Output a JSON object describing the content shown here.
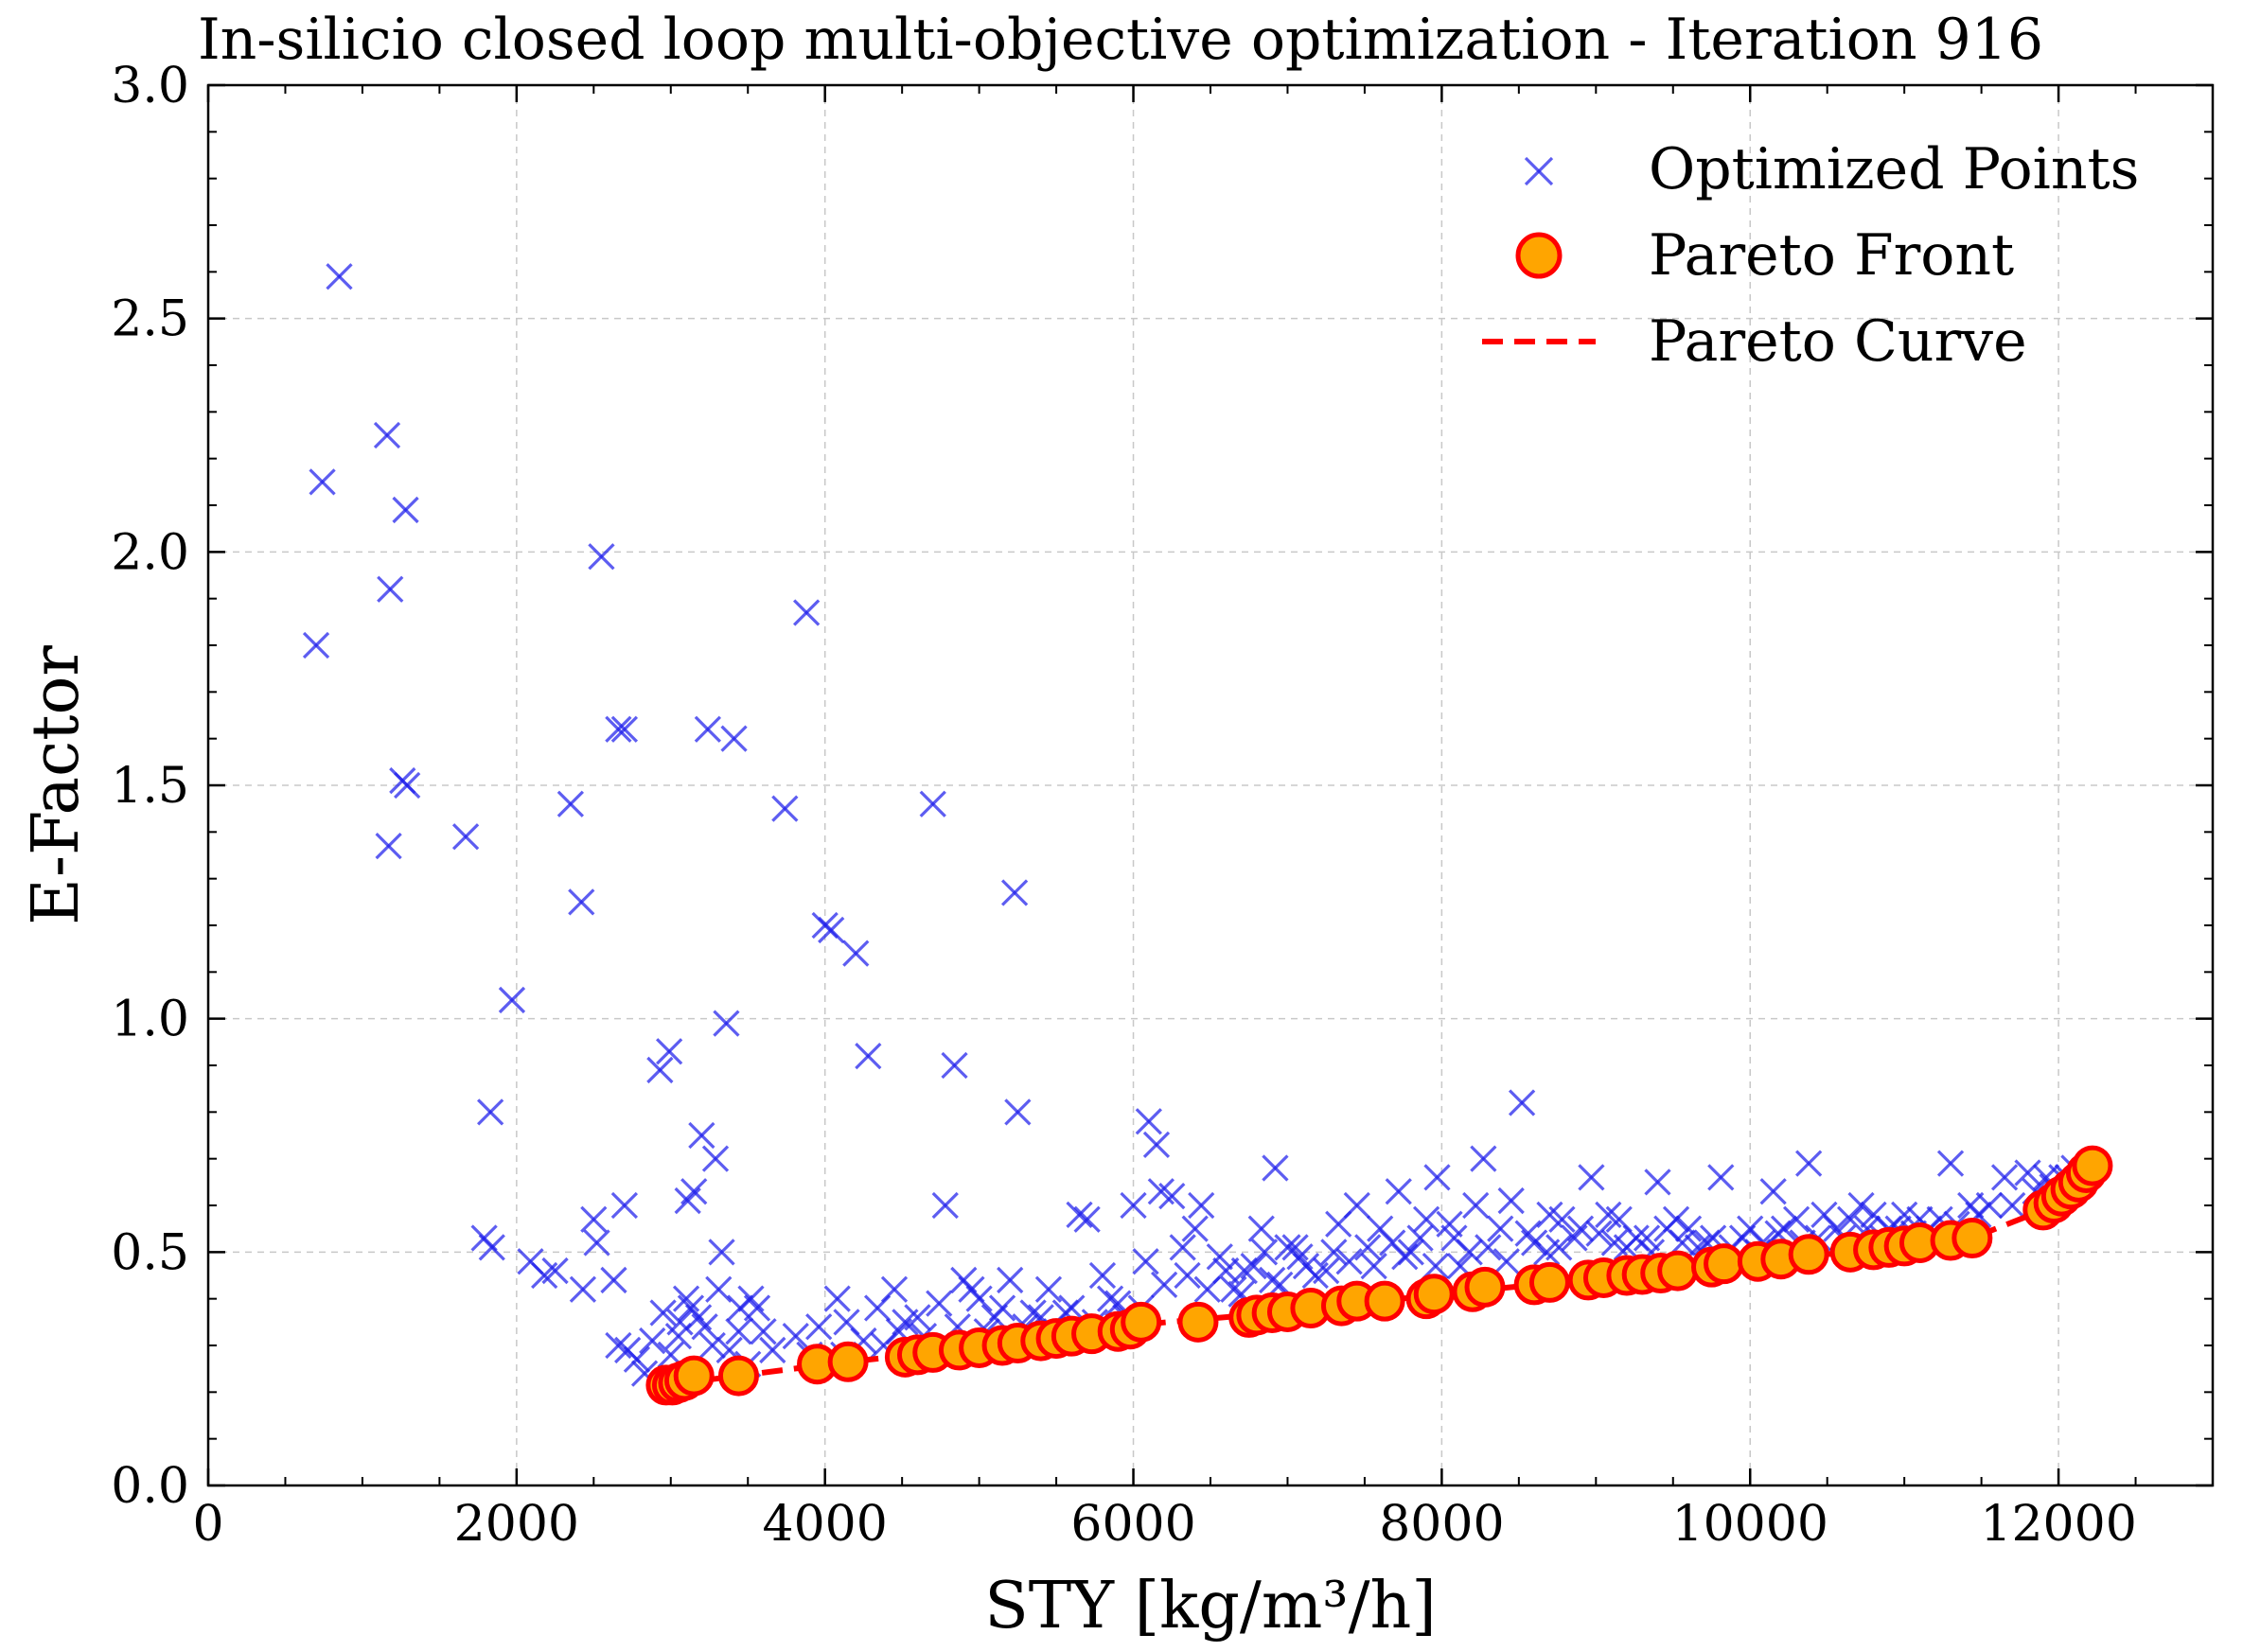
{
  "chart_data": {
    "type": "scatter",
    "title": "In-silicio closed loop multi-objective optimization - Iteration 916",
    "xlabel": "STY [kg/m³/h]",
    "ylabel": "E-Factor",
    "xlim": [
      0,
      13000
    ],
    "ylim": [
      0.0,
      3.0
    ],
    "x_ticks": [
      0,
      2000,
      4000,
      6000,
      8000,
      10000,
      12000
    ],
    "x_tick_labels": [
      "0",
      "2000",
      "4000",
      "6000",
      "8000",
      "10000",
      "12000"
    ],
    "y_ticks": [
      0.0,
      0.5,
      1.0,
      1.5,
      2.0,
      2.5,
      3.0
    ],
    "y_tick_labels": [
      "0.0",
      "0.5",
      "1.0",
      "1.5",
      "2.0",
      "2.5",
      "3.0"
    ],
    "grid": true,
    "legend": {
      "placement": "top-right",
      "entries": [
        "Optimized Points",
        "Pareto Front",
        "Pareto Curve"
      ]
    },
    "colors": {
      "optimized": "#1e1eeb",
      "pareto_fill": "#ffa500",
      "pareto_edge": "#ff0000",
      "pareto_curve": "#ff0000"
    },
    "series": [
      {
        "name": "Optimized Points",
        "marker": "x",
        "points": [
          [
            700,
            1.8
          ],
          [
            740,
            2.15
          ],
          [
            850,
            2.59
          ],
          [
            1160,
            2.25
          ],
          [
            1180,
            1.92
          ],
          [
            1170,
            1.37
          ],
          [
            1260,
            1.51
          ],
          [
            1290,
            1.5
          ],
          [
            1280,
            2.09
          ],
          [
            1670,
            1.39
          ],
          [
            1970,
            1.04
          ],
          [
            1830,
            0.8
          ],
          [
            1790,
            0.53
          ],
          [
            1840,
            0.51
          ],
          [
            2090,
            0.48
          ],
          [
            2180,
            0.45
          ],
          [
            2250,
            0.46
          ],
          [
            2350,
            1.46
          ],
          [
            2420,
            1.25
          ],
          [
            2430,
            0.42
          ],
          [
            2500,
            0.57
          ],
          [
            2520,
            0.52
          ],
          [
            2550,
            1.99
          ],
          [
            2630,
            0.44
          ],
          [
            2660,
            1.62
          ],
          [
            2700,
            1.62
          ],
          [
            2700,
            0.6
          ],
          [
            2660,
            0.3
          ],
          [
            2720,
            0.29
          ],
          [
            2780,
            0.27
          ],
          [
            2830,
            0.24
          ],
          [
            2880,
            0.31
          ],
          [
            2930,
            0.89
          ],
          [
            2990,
            0.93
          ],
          [
            3060,
            0.35
          ],
          [
            3110,
            0.61
          ],
          [
            3150,
            0.63
          ],
          [
            3200,
            0.75
          ],
          [
            3240,
            1.62
          ],
          [
            3290,
            0.7
          ],
          [
            3330,
            0.5
          ],
          [
            3360,
            0.99
          ],
          [
            3410,
            1.6
          ],
          [
            3450,
            0.38
          ],
          [
            3520,
            0.4
          ],
          [
            3600,
            0.33
          ],
          [
            3740,
            1.45
          ],
          [
            3810,
            0.32
          ],
          [
            3880,
            1.87
          ],
          [
            4000,
            1.2
          ],
          [
            4040,
            1.19
          ],
          [
            4080,
            0.4
          ],
          [
            4140,
            0.35
          ],
          [
            4200,
            1.14
          ],
          [
            4280,
            0.92
          ],
          [
            4340,
            0.38
          ],
          [
            4450,
            0.42
          ],
          [
            4520,
            0.35
          ],
          [
            4600,
            0.36
          ],
          [
            4700,
            1.46
          ],
          [
            4780,
            0.6
          ],
          [
            4840,
            0.9
          ],
          [
            4900,
            0.44
          ],
          [
            5000,
            0.4
          ],
          [
            5100,
            0.36
          ],
          [
            5200,
            0.44
          ],
          [
            5230,
            1.27
          ],
          [
            5250,
            0.8
          ],
          [
            5350,
            0.37
          ],
          [
            5450,
            0.42
          ],
          [
            5560,
            0.37
          ],
          [
            5650,
            0.58
          ],
          [
            5700,
            0.57
          ],
          [
            5800,
            0.45
          ],
          [
            5900,
            0.39
          ],
          [
            6000,
            0.6
          ],
          [
            6080,
            0.48
          ],
          [
            6100,
            0.78
          ],
          [
            6150,
            0.73
          ],
          [
            6180,
            0.63
          ],
          [
            6250,
            0.62
          ],
          [
            6320,
            0.51
          ],
          [
            6400,
            0.55
          ],
          [
            6440,
            0.6
          ],
          [
            6560,
            0.49
          ],
          [
            6650,
            0.42
          ],
          [
            6720,
            0.46
          ],
          [
            6830,
            0.55
          ],
          [
            6900,
            0.44
          ],
          [
            6920,
            0.68
          ],
          [
            7000,
            0.51
          ],
          [
            7050,
            0.51
          ],
          [
            7120,
            0.47
          ],
          [
            7250,
            0.46
          ],
          [
            7330,
            0.56
          ],
          [
            7450,
            0.6
          ],
          [
            7520,
            0.51
          ],
          [
            7600,
            0.55
          ],
          [
            7720,
            0.63
          ],
          [
            7800,
            0.5
          ],
          [
            7900,
            0.57
          ],
          [
            7970,
            0.66
          ],
          [
            8050,
            0.56
          ],
          [
            8120,
            0.47
          ],
          [
            8220,
            0.6
          ],
          [
            8270,
            0.7
          ],
          [
            8380,
            0.55
          ],
          [
            8450,
            0.61
          ],
          [
            8520,
            0.82
          ],
          [
            8600,
            0.52
          ],
          [
            8700,
            0.58
          ],
          [
            8780,
            0.57
          ],
          [
            8900,
            0.55
          ],
          [
            8970,
            0.66
          ],
          [
            9080,
            0.58
          ],
          [
            9150,
            0.57
          ],
          [
            9200,
            0.51
          ],
          [
            9330,
            0.53
          ],
          [
            9400,
            0.65
          ],
          [
            9520,
            0.57
          ],
          [
            9600,
            0.55
          ],
          [
            9720,
            0.52
          ],
          [
            9810,
            0.66
          ],
          [
            9880,
            0.51
          ],
          [
            10000,
            0.55
          ],
          [
            10080,
            0.52
          ],
          [
            10150,
            0.63
          ],
          [
            10220,
            0.55
          ],
          [
            10300,
            0.57
          ],
          [
            10380,
            0.69
          ],
          [
            10480,
            0.58
          ],
          [
            10560,
            0.55
          ],
          [
            10650,
            0.57
          ],
          [
            10720,
            0.6
          ],
          [
            10800,
            0.58
          ],
          [
            10900,
            0.55
          ],
          [
            11000,
            0.58
          ],
          [
            11100,
            0.57
          ],
          [
            11230,
            0.57
          ],
          [
            11300,
            0.69
          ],
          [
            11430,
            0.6
          ],
          [
            11550,
            0.6
          ],
          [
            11650,
            0.66
          ],
          [
            11800,
            0.67
          ],
          [
            11920,
            0.66
          ],
          [
            12020,
            0.66
          ],
          [
            12100,
            0.68
          ],
          [
            2950,
            0.37
          ],
          [
            3000,
            0.28
          ],
          [
            3050,
            0.32
          ],
          [
            3100,
            0.4
          ],
          [
            3130,
            0.38
          ],
          [
            3180,
            0.36
          ],
          [
            3220,
            0.34
          ],
          [
            3270,
            0.3
          ],
          [
            3310,
            0.42
          ],
          [
            3380,
            0.29
          ],
          [
            3440,
            0.33
          ],
          [
            3500,
            0.26
          ],
          [
            3560,
            0.38
          ],
          [
            3660,
            0.29
          ],
          [
            3900,
            0.28
          ],
          [
            3960,
            0.34
          ],
          [
            4120,
            0.28
          ],
          [
            4250,
            0.31
          ],
          [
            4380,
            0.3
          ],
          [
            4480,
            0.33
          ],
          [
            4640,
            0.32
          ],
          [
            4740,
            0.39
          ],
          [
            4860,
            0.34
          ],
          [
            4950,
            0.42
          ],
          [
            5050,
            0.33
          ],
          [
            5150,
            0.38
          ],
          [
            5300,
            0.34
          ],
          [
            5400,
            0.36
          ],
          [
            5500,
            0.33
          ],
          [
            5600,
            0.38
          ],
          [
            5750,
            0.35
          ],
          [
            5850,
            0.4
          ],
          [
            5950,
            0.36
          ],
          [
            6050,
            0.38
          ],
          [
            6200,
            0.43
          ],
          [
            6350,
            0.45
          ],
          [
            6480,
            0.42
          ],
          [
            6600,
            0.46
          ],
          [
            6700,
            0.41
          ],
          [
            6780,
            0.47
          ],
          [
            6850,
            0.5
          ],
          [
            6950,
            0.43
          ],
          [
            7080,
            0.49
          ],
          [
            7180,
            0.45
          ],
          [
            7300,
            0.5
          ],
          [
            7400,
            0.48
          ],
          [
            7560,
            0.47
          ],
          [
            7680,
            0.52
          ],
          [
            7760,
            0.49
          ],
          [
            7860,
            0.53
          ],
          [
            7960,
            0.47
          ],
          [
            8080,
            0.53
          ],
          [
            8180,
            0.5
          ],
          [
            8300,
            0.51
          ],
          [
            8420,
            0.48
          ],
          [
            8560,
            0.54
          ],
          [
            8680,
            0.5
          ],
          [
            8760,
            0.51
          ],
          [
            8860,
            0.53
          ],
          [
            9020,
            0.54
          ],
          [
            9120,
            0.52
          ],
          [
            9260,
            0.53
          ],
          [
            9360,
            0.5
          ],
          [
            9460,
            0.55
          ],
          [
            9560,
            0.52
          ],
          [
            9660,
            0.51
          ],
          [
            9760,
            0.53
          ],
          [
            9950,
            0.53
          ],
          [
            10050,
            0.5
          ],
          [
            10180,
            0.54
          ],
          [
            10340,
            0.52
          ],
          [
            10440,
            0.53
          ],
          [
            10600,
            0.53
          ],
          [
            10760,
            0.55
          ],
          [
            10860,
            0.53
          ],
          [
            10960,
            0.55
          ],
          [
            11060,
            0.54
          ],
          [
            11160,
            0.55
          ],
          [
            11340,
            0.56
          ],
          [
            11480,
            0.58
          ],
          [
            11700,
            0.6
          ],
          [
            11850,
            0.63
          ],
          [
            11960,
            0.64
          ],
          [
            12060,
            0.66
          ]
        ]
      },
      {
        "name": "Pareto Front",
        "marker": "circle",
        "points": [
          [
            2970,
            0.215
          ],
          [
            3010,
            0.215
          ],
          [
            3050,
            0.22
          ],
          [
            3090,
            0.225
          ],
          [
            3150,
            0.235
          ],
          [
            3440,
            0.235
          ],
          [
            3950,
            0.26
          ],
          [
            4150,
            0.265
          ],
          [
            4520,
            0.275
          ],
          [
            4600,
            0.28
          ],
          [
            4700,
            0.285
          ],
          [
            4870,
            0.29
          ],
          [
            5000,
            0.295
          ],
          [
            5150,
            0.3
          ],
          [
            5250,
            0.305
          ],
          [
            5400,
            0.31
          ],
          [
            5500,
            0.315
          ],
          [
            5600,
            0.32
          ],
          [
            5730,
            0.325
          ],
          [
            5900,
            0.33
          ],
          [
            5980,
            0.335
          ],
          [
            6050,
            0.35
          ],
          [
            6420,
            0.35
          ],
          [
            6750,
            0.36
          ],
          [
            6800,
            0.365
          ],
          [
            6900,
            0.37
          ],
          [
            7000,
            0.372
          ],
          [
            7150,
            0.38
          ],
          [
            7350,
            0.385
          ],
          [
            7450,
            0.395
          ],
          [
            7630,
            0.395
          ],
          [
            7900,
            0.4
          ],
          [
            7950,
            0.41
          ],
          [
            8200,
            0.415
          ],
          [
            8280,
            0.425
          ],
          [
            8600,
            0.43
          ],
          [
            8700,
            0.435
          ],
          [
            8950,
            0.44
          ],
          [
            9050,
            0.445
          ],
          [
            9200,
            0.45
          ],
          [
            9300,
            0.452
          ],
          [
            9420,
            0.455
          ],
          [
            9530,
            0.46
          ],
          [
            9750,
            0.468
          ],
          [
            9830,
            0.475
          ],
          [
            10050,
            0.48
          ],
          [
            10200,
            0.485
          ],
          [
            10380,
            0.495
          ],
          [
            10650,
            0.5
          ],
          [
            10800,
            0.505
          ],
          [
            10900,
            0.51
          ],
          [
            11000,
            0.513
          ],
          [
            11100,
            0.52
          ],
          [
            11300,
            0.525
          ],
          [
            11440,
            0.53
          ],
          [
            11900,
            0.59
          ],
          [
            11970,
            0.605
          ],
          [
            12020,
            0.62
          ],
          [
            12080,
            0.635
          ],
          [
            12130,
            0.65
          ],
          [
            12180,
            0.67
          ],
          [
            12220,
            0.685
          ]
        ]
      },
      {
        "name": "Pareto Curve",
        "style": "dashed",
        "points": [
          [
            2970,
            0.215
          ],
          [
            3440,
            0.235
          ],
          [
            4150,
            0.265
          ],
          [
            5000,
            0.295
          ],
          [
            6050,
            0.345
          ],
          [
            7000,
            0.372
          ],
          [
            8000,
            0.41
          ],
          [
            9000,
            0.443
          ],
          [
            10000,
            0.478
          ],
          [
            11000,
            0.513
          ],
          [
            11440,
            0.53
          ],
          [
            11900,
            0.59
          ],
          [
            12220,
            0.685
          ]
        ]
      }
    ]
  }
}
